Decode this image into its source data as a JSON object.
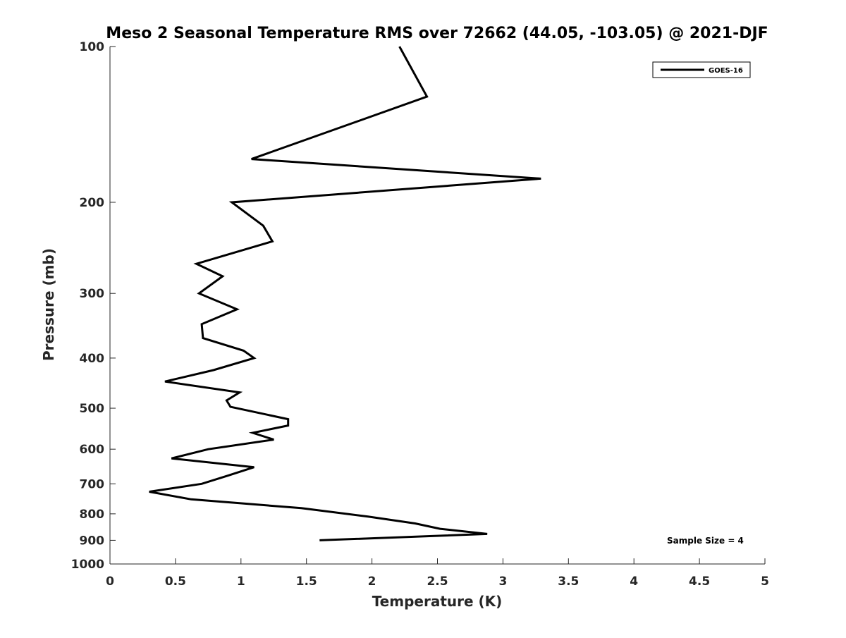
{
  "chart_data": {
    "type": "line",
    "title": "Meso 2 Seasonal Temperature RMS over 72662 (44.05, -103.05) @ 2021-DJF",
    "xlabel": "Temperature (K)",
    "ylabel": "Pressure (mb)",
    "xlim": [
      0,
      5
    ],
    "ylim": [
      100,
      1000
    ],
    "y_scale": "log",
    "y_reversed": true,
    "x_ticks": [
      "0",
      "0.5",
      "1",
      "1.5",
      "2",
      "2.5",
      "3",
      "3.5",
      "4",
      "4.5",
      "5"
    ],
    "y_ticks": [
      "100",
      "200",
      "300",
      "400",
      "500",
      "600",
      "700",
      "800",
      "900",
      "1000"
    ],
    "grid": false,
    "legend": {
      "position": "top-right"
    },
    "annotation": "Sample Size = 4",
    "series": [
      {
        "name": "GOES-16",
        "color": "#000000",
        "points": [
          [
            2.21,
            100
          ],
          [
            2.42,
            125
          ],
          [
            1.08,
            165
          ],
          [
            3.29,
            180
          ],
          [
            0.93,
            200
          ],
          [
            1.17,
            222
          ],
          [
            1.24,
            238
          ],
          [
            0.66,
            263
          ],
          [
            0.86,
            278
          ],
          [
            0.68,
            300
          ],
          [
            0.97,
            322
          ],
          [
            0.7,
            344
          ],
          [
            0.71,
            366
          ],
          [
            1.02,
            387
          ],
          [
            1.1,
            400
          ],
          [
            0.79,
            422
          ],
          [
            0.42,
            444
          ],
          [
            0.99,
            466
          ],
          [
            0.89,
            483
          ],
          [
            0.92,
            497
          ],
          [
            1.36,
            525
          ],
          [
            1.36,
            540
          ],
          [
            1.09,
            558
          ],
          [
            1.25,
            575
          ],
          [
            0.75,
            600
          ],
          [
            0.47,
            625
          ],
          [
            1.1,
            650
          ],
          [
            0.9,
            675
          ],
          [
            0.7,
            700
          ],
          [
            0.3,
            725
          ],
          [
            0.62,
            750
          ],
          [
            1.46,
            780
          ],
          [
            1.97,
            810
          ],
          [
            2.33,
            835
          ],
          [
            2.52,
            855
          ],
          [
            2.88,
            875
          ],
          [
            1.6,
            900
          ]
        ]
      }
    ]
  }
}
